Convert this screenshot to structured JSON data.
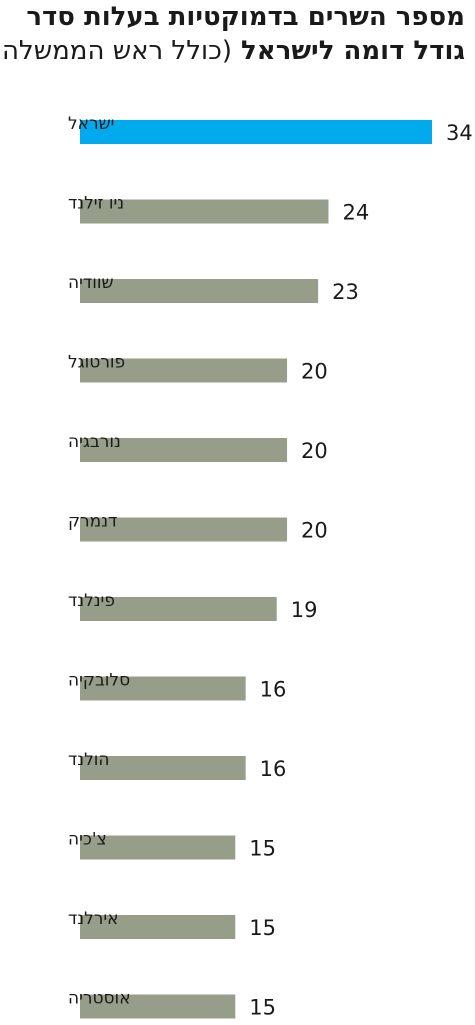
{
  "chart_data": {
    "type": "bar",
    "orientation": "horizontal",
    "title_line1": "מספר השרים בדמוקטיות בעלות סדר",
    "title_line2_bold": "גודל דומה לישראל",
    "title_line2_regular": "(כולל ראש הממשלה)",
    "categories": [
      "ישראל",
      "ניו זילנד",
      "שוודיה",
      "פורטוגל",
      "נורבגיה",
      "דנמרק",
      "פינלנד",
      "סלובקיה",
      "הולנד",
      "צ'כיה",
      "אירלנד",
      "אוסטריה"
    ],
    "values": [
      34,
      24,
      23,
      20,
      20,
      20,
      19,
      16,
      16,
      15,
      15,
      15
    ],
    "highlight_index": 0,
    "grid": false,
    "colors": {
      "bar": "#969e8a",
      "highlight": "#00aaec",
      "text": "#1a1a1a"
    }
  }
}
